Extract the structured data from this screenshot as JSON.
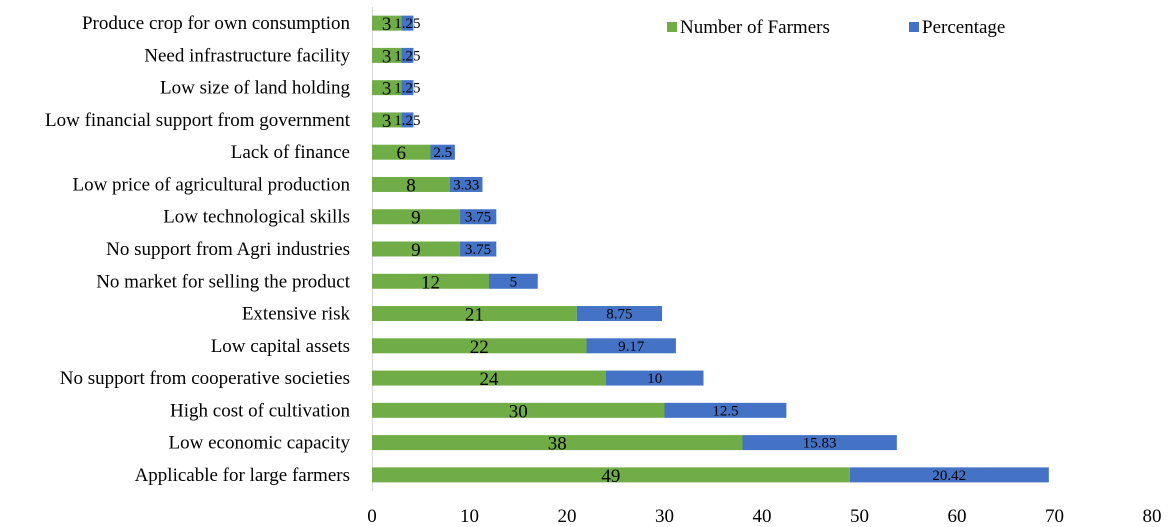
{
  "chart_data": {
    "type": "bar",
    "orientation": "horizontal",
    "stacked": true,
    "categories": [
      "Produce crop for own consumption",
      "Need infrastructure facility",
      "Low size of land holding",
      "Low financial support from government",
      "Lack of finance",
      "Low price of agricultural production",
      "Low technological skills",
      "No support from Agri industries",
      "No market for selling the product",
      "Extensive risk",
      "Low capital assets",
      "No support from cooperative societies",
      "High cost of cultivation",
      "Low economic capacity",
      "Applicable for large farmers"
    ],
    "series": [
      {
        "name": "Number of Farmers",
        "color": "#70AD47",
        "values": [
          3,
          3,
          3,
          3,
          6,
          8,
          9,
          9,
          12,
          21,
          22,
          24,
          30,
          38,
          49
        ],
        "labels": [
          "3",
          "3",
          "3",
          "3",
          "6",
          "8",
          "9",
          "9",
          "12",
          "21",
          "22",
          "24",
          "30",
          "38",
          "49"
        ]
      },
      {
        "name": "Percentage",
        "color": "#4472C4",
        "values": [
          1.25,
          1.25,
          1.25,
          1.25,
          2.5,
          3.33,
          3.75,
          3.75,
          5,
          8.75,
          9.17,
          10,
          12.5,
          15.83,
          20.42
        ],
        "labels": [
          "1.25",
          "1.25",
          "1.25",
          "1.25",
          "2.5",
          "3.33",
          "3.75",
          "3.75",
          "5",
          "8.75",
          "9.17",
          "10",
          "12.5",
          "15.83",
          "20.42"
        ]
      }
    ],
    "xlim": [
      0,
      80
    ],
    "xticks": [
      "0",
      "10",
      "20",
      "30",
      "40",
      "50",
      "60",
      "70",
      "80"
    ],
    "grid": false,
    "legend_position": "top-right",
    "title": "",
    "xlabel": "",
    "ylabel": ""
  }
}
